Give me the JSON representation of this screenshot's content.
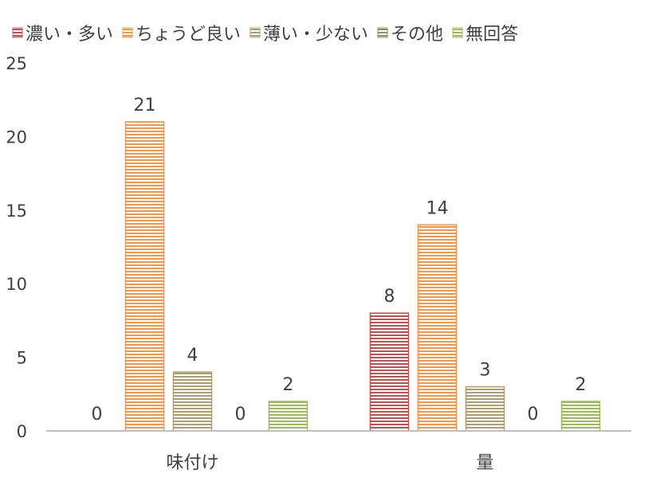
{
  "chart_data": {
    "type": "bar",
    "categories": [
      "味付け",
      "量"
    ],
    "series": [
      {
        "name": "濃い・多い",
        "color": "#c0504d",
        "values": [
          0,
          8
        ]
      },
      {
        "name": "ちょうど良い",
        "color": "#f79646",
        "values": [
          21,
          14
        ]
      },
      {
        "name": "薄い・少ない",
        "color": "#b19c6e",
        "values": [
          4,
          3
        ]
      },
      {
        "name": "その他",
        "color": "#7f9a5a",
        "values": [
          0,
          0
        ]
      },
      {
        "name": "無回答",
        "color": "#9bbb59",
        "values": [
          2,
          2
        ]
      }
    ],
    "yticks": [
      "0",
      "5",
      "10",
      "15",
      "20",
      "25"
    ],
    "ylim": [
      0,
      25
    ],
    "grid": false,
    "legend_position": "top-left",
    "data_labels": true
  }
}
